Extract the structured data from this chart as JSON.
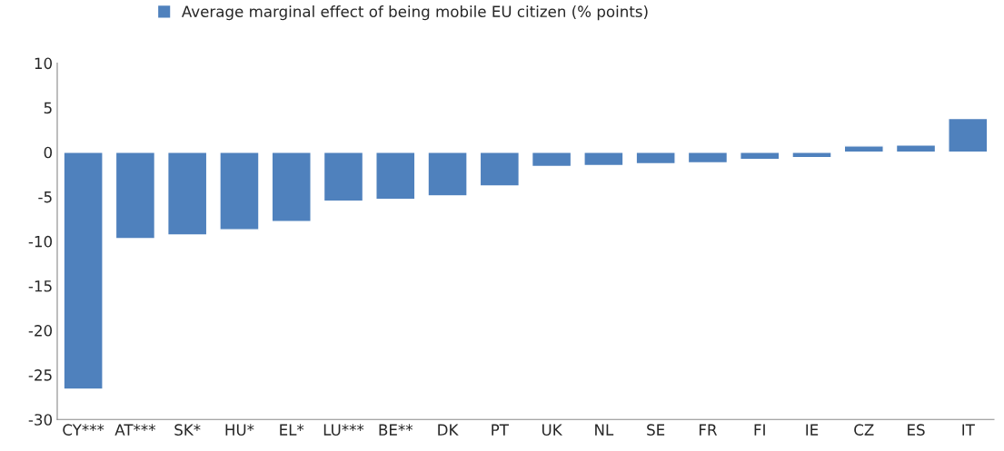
{
  "chart_data": {
    "type": "bar",
    "categories": [
      "CY***",
      "AT***",
      "SK*",
      "HU*",
      "EL*",
      "LU***",
      "BE**",
      "DK",
      "PT",
      "UK",
      "NL",
      "SE",
      "FR",
      "FI",
      "IE",
      "CZ",
      "ES",
      "IT"
    ],
    "series": [
      {
        "name": "Average marginal effect of being mobile EU citizen (% points)",
        "color": "#4f81bd",
        "values": [
          -26.6,
          -9.7,
          -9.3,
          -8.7,
          -7.8,
          -5.5,
          -5.3,
          -4.9,
          -3.8,
          -1.6,
          -1.5,
          -1.3,
          -1.2,
          -0.8,
          -0.6,
          0.7,
          0.8,
          3.8
        ]
      }
    ],
    "ylim": [
      -30,
      10
    ],
    "yticks": [
      -30,
      -25,
      -20,
      -15,
      -10,
      -5,
      0,
      5,
      10
    ],
    "grid": false,
    "legend": "top"
  }
}
